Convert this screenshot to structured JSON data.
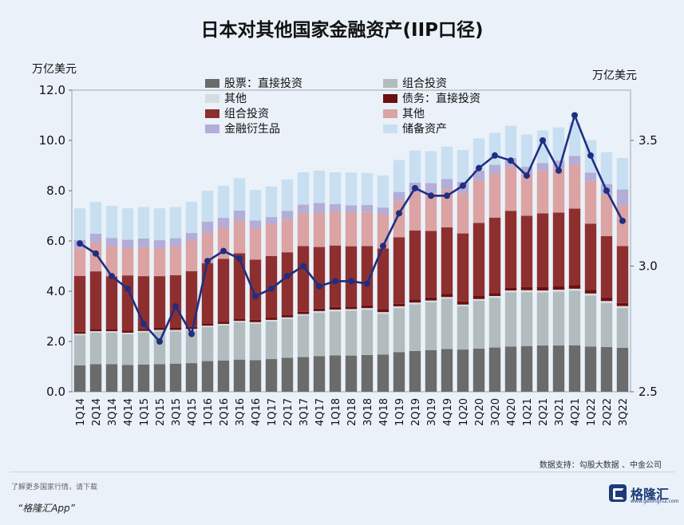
{
  "chart_data": {
    "type": "bar",
    "stacked": true,
    "title": "日本对其他国家金融资产(IIP口径)",
    "ylabel_left": "万亿美元",
    "ylabel_right": "万亿美元",
    "ylim_left": [
      0,
      12
    ],
    "ylim_right": [
      2.5,
      3.7
    ],
    "yticks_left": [
      "0.0",
      "2.0",
      "4.0",
      "6.0",
      "8.0",
      "10.0",
      "12.0"
    ],
    "yticks_right": [
      "2.5",
      "3.0",
      "3.5"
    ],
    "legend_position": "top-left",
    "source": "数据支持：勾股大数据 、中金公司",
    "categories": [
      "1Q14",
      "2Q14",
      "3Q14",
      "4Q14",
      "1Q15",
      "2Q15",
      "3Q15",
      "4Q15",
      "1Q16",
      "2Q16",
      "3Q16",
      "4Q16",
      "1Q17",
      "2Q17",
      "3Q17",
      "4Q17",
      "1Q18",
      "2Q18",
      "3Q18",
      "4Q18",
      "1Q19",
      "2Q19",
      "3Q19",
      "4Q19",
      "1Q20",
      "2Q20",
      "3Q20",
      "4Q20",
      "1Q21",
      "2Q21",
      "3Q21",
      "4Q21",
      "1Q22",
      "2Q22",
      "3Q22"
    ],
    "series": [
      {
        "name": "股票：直接投资",
        "axis": "left",
        "color": "#6b6b6b",
        "values": [
          1.05,
          1.1,
          1.1,
          1.07,
          1.08,
          1.1,
          1.12,
          1.14,
          1.22,
          1.24,
          1.28,
          1.26,
          1.3,
          1.35,
          1.38,
          1.42,
          1.45,
          1.44,
          1.46,
          1.48,
          1.58,
          1.62,
          1.66,
          1.7,
          1.68,
          1.72,
          1.76,
          1.8,
          1.82,
          1.84,
          1.84,
          1.85,
          1.8,
          1.78,
          1.75
        ]
      },
      {
        "name": "组合投资",
        "axis": "left",
        "color": "#b2bcbf",
        "values": [
          1.2,
          1.25,
          1.25,
          1.22,
          1.28,
          1.3,
          1.28,
          1.3,
          1.35,
          1.4,
          1.48,
          1.45,
          1.5,
          1.55,
          1.65,
          1.72,
          1.75,
          1.78,
          1.8,
          1.62,
          1.75,
          1.86,
          1.9,
          2.0,
          1.72,
          1.9,
          1.98,
          2.16,
          2.14,
          2.11,
          2.14,
          2.17,
          2.03,
          1.75,
          1.58
        ]
      },
      {
        "name": "其他",
        "axis": "left",
        "color": "#d5dde0",
        "values": [
          0.06,
          0.06,
          0.06,
          0.06,
          0.06,
          0.06,
          0.06,
          0.06,
          0.06,
          0.06,
          0.06,
          0.06,
          0.06,
          0.06,
          0.06,
          0.07,
          0.07,
          0.07,
          0.07,
          0.07,
          0.07,
          0.07,
          0.07,
          0.07,
          0.07,
          0.07,
          0.07,
          0.07,
          0.08,
          0.08,
          0.08,
          0.08,
          0.08,
          0.08,
          0.08
        ]
      },
      {
        "name": "债务：直接投资",
        "axis": "left",
        "color": "#6b0f0f",
        "values": [
          0.08,
          0.08,
          0.08,
          0.08,
          0.08,
          0.08,
          0.08,
          0.08,
          0.09,
          0.09,
          0.09,
          0.09,
          0.09,
          0.09,
          0.09,
          0.1,
          0.1,
          0.1,
          0.1,
          0.1,
          0.1,
          0.12,
          0.12,
          0.12,
          0.12,
          0.12,
          0.12,
          0.12,
          0.13,
          0.13,
          0.13,
          0.14,
          0.14,
          0.12,
          0.12
        ]
      },
      {
        "name": "组合投资",
        "axis": "left",
        "color": "#8e2f2f",
        "values": [
          2.22,
          2.3,
          2.1,
          2.2,
          2.1,
          2.06,
          2.1,
          2.22,
          2.4,
          2.5,
          2.6,
          2.4,
          2.45,
          2.5,
          2.62,
          2.45,
          2.45,
          2.4,
          2.37,
          2.43,
          2.65,
          2.75,
          2.65,
          2.65,
          2.71,
          2.91,
          3.0,
          3.05,
          2.83,
          2.94,
          2.94,
          3.05,
          2.64,
          2.46,
          2.27
        ]
      },
      {
        "name": "其他",
        "axis": "left",
        "color": "#dba3a3",
        "values": [
          1.1,
          1.15,
          1.2,
          1.1,
          1.15,
          1.1,
          1.15,
          1.2,
          1.2,
          1.25,
          1.3,
          1.25,
          1.25,
          1.3,
          1.3,
          1.35,
          1.35,
          1.35,
          1.35,
          1.35,
          1.45,
          1.5,
          1.5,
          1.5,
          1.6,
          1.7,
          1.75,
          1.75,
          1.65,
          1.7,
          1.75,
          1.75,
          1.7,
          1.65,
          1.6
        ]
      },
      {
        "name": "金融衍生品",
        "axis": "left",
        "color": "#b3add8",
        "values": [
          0.33,
          0.35,
          0.33,
          0.32,
          0.35,
          0.33,
          0.32,
          0.32,
          0.45,
          0.38,
          0.4,
          0.3,
          0.3,
          0.35,
          0.35,
          0.4,
          0.3,
          0.28,
          0.28,
          0.28,
          0.35,
          0.4,
          0.4,
          0.42,
          0.45,
          0.38,
          0.35,
          0.35,
          0.3,
          0.3,
          0.32,
          0.35,
          0.33,
          0.42,
          0.65
        ]
      },
      {
        "name": "储备资产",
        "axis": "left",
        "color": "#c8dff2",
        "values": [
          1.26,
          1.26,
          1.28,
          1.25,
          1.25,
          1.27,
          1.24,
          1.24,
          1.23,
          1.28,
          1.29,
          1.22,
          1.22,
          1.25,
          1.28,
          1.29,
          1.26,
          1.3,
          1.27,
          1.28,
          1.27,
          1.28,
          1.27,
          1.29,
          1.27,
          1.28,
          1.27,
          1.28,
          1.29,
          1.3,
          1.32,
          1.32,
          1.29,
          1.27,
          1.25
        ]
      },
      {
        "type": "line",
        "axis": "right",
        "color": "#1f2e80",
        "values": [
          3.09,
          3.05,
          2.96,
          2.91,
          2.77,
          2.7,
          2.84,
          2.73,
          3.02,
          3.06,
          3.03,
          2.88,
          2.91,
          2.96,
          3.0,
          2.92,
          2.94,
          2.94,
          2.93,
          3.08,
          3.21,
          3.31,
          3.28,
          3.28,
          3.32,
          3.39,
          3.44,
          3.42,
          3.36,
          3.5,
          3.38,
          3.6,
          3.44,
          3.3,
          3.18
        ]
      }
    ]
  },
  "footer": {
    "line1": "了解更多国家行情，请下载",
    "line2": "“格隆汇App”",
    "logo_text": "格隆汇",
    "logo_url": "www.gelonghui.com"
  }
}
